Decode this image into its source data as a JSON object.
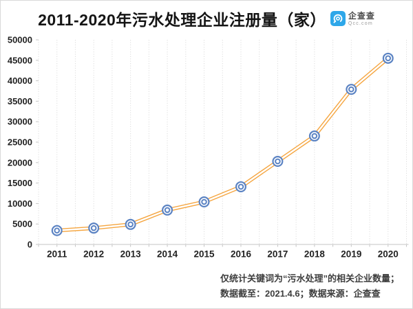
{
  "header": {
    "title": "2011-2020年污水处理企业注册量（家）",
    "logo": {
      "name": "企查查",
      "domain": "Qcc.com",
      "color": "#2ea7e9"
    }
  },
  "chart_data": {
    "type": "line",
    "title": "2011-2020年污水处理企业注册量（家）",
    "categories": [
      "2011",
      "2012",
      "2013",
      "2014",
      "2015",
      "2016",
      "2017",
      "2018",
      "2019",
      "2020"
    ],
    "values": [
      3400,
      4000,
      4900,
      8400,
      10400,
      14100,
      20300,
      26500,
      37900,
      45500
    ],
    "xlabel": "",
    "ylabel": "",
    "ylim": [
      0,
      50000
    ],
    "ytick_step": 5000,
    "yticks": [
      0,
      5000,
      10000,
      15000,
      20000,
      25000,
      30000,
      35000,
      40000,
      45000,
      50000
    ],
    "grid": "vertical-dotted",
    "legend": "none",
    "line_color": "#f5a53f",
    "line_style": "double-stroke-white-core",
    "marker": "double-ring-circle",
    "marker_color": "#5b83c3",
    "axis_color": "#c6c6c6",
    "grid_color": "#dcdcdc",
    "tick_label_color": "#222222"
  },
  "footer": {
    "note1": "仅统计关键词为“污水处理”的相关企业数量；",
    "note2": "数据截至：2021.4.6；数据来源：企查查"
  }
}
